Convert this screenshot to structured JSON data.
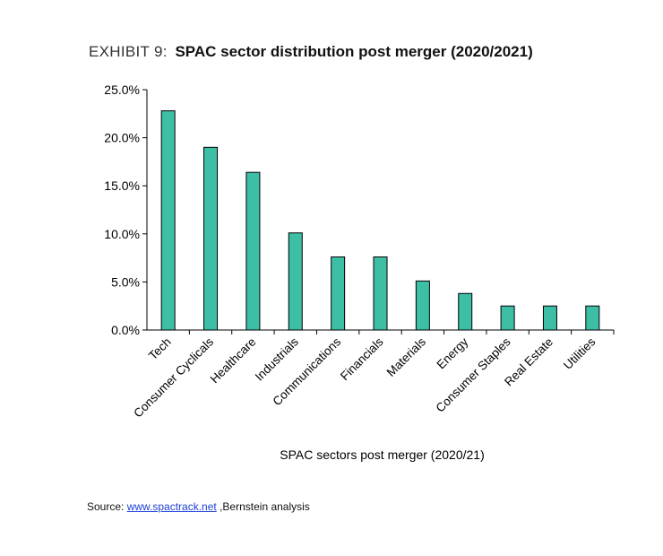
{
  "header": {
    "exhibit": "EXHIBIT 9:",
    "title": "SPAC sector distribution post merger (2020/2021)"
  },
  "chart_data": {
    "type": "bar",
    "title": "SPAC sector distribution post merger (2020/2021)",
    "xlabel": "SPAC sectors post merger (2020/21)",
    "ylabel": "",
    "ylim": [
      0,
      25
    ],
    "yticks": [
      "0.0%",
      "5.0%",
      "10.0%",
      "15.0%",
      "20.0%",
      "25.0%"
    ],
    "categories": [
      "Tech",
      "Consumer Cyclicals",
      "Healthcare",
      "Industrials",
      "Communications",
      "Financials",
      "Materials",
      "Energy",
      "Consumer Staples",
      "Real Estate",
      "Utilities"
    ],
    "values": [
      22.8,
      19.0,
      16.4,
      10.1,
      7.6,
      7.6,
      5.1,
      3.8,
      2.5,
      2.5,
      2.5
    ],
    "bar_color": "#3dbfa6",
    "grid": false,
    "legend": "none"
  },
  "footer": {
    "source_label": "Source: ",
    "source_link": "www.spactrack.net",
    "source_rest": " ,Bernstein analysis"
  }
}
